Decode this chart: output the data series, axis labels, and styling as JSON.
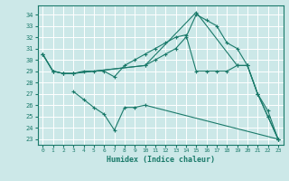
{
  "xlabel": "Humidex (Indice chaleur)",
  "bg_color": "#cce8e8",
  "line_color": "#1a7a6a",
  "grid_color": "#ffffff",
  "xlim": [
    -0.5,
    23.5
  ],
  "ylim": [
    22.5,
    34.8
  ],
  "yticks": [
    23,
    24,
    25,
    26,
    27,
    28,
    29,
    30,
    31,
    32,
    33,
    34
  ],
  "xticks": [
    0,
    1,
    2,
    3,
    4,
    5,
    6,
    7,
    8,
    9,
    10,
    11,
    12,
    13,
    14,
    15,
    16,
    17,
    18,
    19,
    20,
    21,
    22,
    23
  ],
  "lines": [
    {
      "x": [
        0,
        1,
        2,
        3,
        10,
        11,
        12,
        13,
        14,
        15,
        16,
        17,
        18,
        19,
        20,
        21,
        22,
        23
      ],
      "y": [
        30.5,
        29,
        28.8,
        28.8,
        29.5,
        30,
        30.5,
        31,
        32,
        34,
        33.5,
        33,
        31.5,
        31,
        29.5,
        27,
        25,
        23
      ]
    },
    {
      "x": [
        0,
        1,
        2,
        3,
        4,
        5,
        6,
        7,
        8,
        9,
        10,
        11,
        12,
        13,
        14,
        15,
        16,
        17,
        18,
        19,
        20,
        21,
        22,
        23
      ],
      "y": [
        30.5,
        29,
        28.8,
        28.8,
        29,
        29,
        29,
        28.5,
        29.5,
        30,
        30.5,
        31,
        31.5,
        32,
        32.2,
        29,
        29,
        29,
        29,
        29.5,
        29.5,
        27,
        25.5,
        23
      ]
    },
    {
      "x": [
        0,
        1,
        2,
        3,
        10,
        15,
        19,
        20,
        21,
        22,
        23
      ],
      "y": [
        30.5,
        29,
        28.8,
        28.8,
        29.5,
        34.2,
        29.5,
        29.5,
        27,
        25,
        23
      ]
    },
    {
      "x": [
        3,
        4,
        5,
        6,
        7,
        8,
        9,
        10,
        23
      ],
      "y": [
        27.2,
        26.5,
        25.8,
        25.2,
        23.8,
        25.8,
        25.8,
        26,
        23
      ]
    }
  ]
}
